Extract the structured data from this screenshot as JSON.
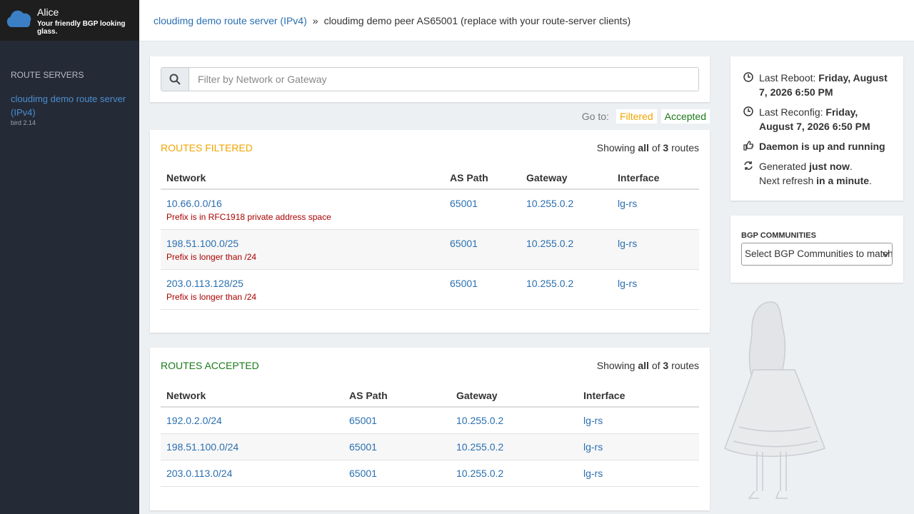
{
  "brand": {
    "name": "Alice",
    "tagline": "Your friendly BGP looking glass."
  },
  "sidebar": {
    "section": "ROUTE SERVERS",
    "servers": [
      {
        "name": "cloudimg demo route server (IPv4)",
        "version": "bird 2.14"
      }
    ]
  },
  "breadcrumb": {
    "parent": "cloudimg demo route server (IPv4)",
    "separator": "»",
    "current": "cloudimg demo peer AS65001 (replace with your route-server clients)"
  },
  "search": {
    "placeholder": "Filter by Network or Gateway"
  },
  "goto": {
    "label": "Go to:",
    "links": [
      "Filtered",
      "Accepted"
    ]
  },
  "filtered": {
    "title": "ROUTES FILTERED",
    "summary": {
      "prefix": "Showing",
      "scope": "all",
      "of": "of",
      "count": 3,
      "suffix": "routes"
    },
    "columns": [
      "Network",
      "AS Path",
      "Gateway",
      "Interface"
    ],
    "rows": [
      {
        "network": "10.66.0.0/16",
        "reason": "Prefix is in RFC1918 private address space",
        "as_path": "65001",
        "gateway": "10.255.0.2",
        "interface": "lg-rs"
      },
      {
        "network": "198.51.100.0/25",
        "reason": "Prefix is longer than /24",
        "as_path": "65001",
        "gateway": "10.255.0.2",
        "interface": "lg-rs"
      },
      {
        "network": "203.0.113.128/25",
        "reason": "Prefix is longer than /24",
        "as_path": "65001",
        "gateway": "10.255.0.2",
        "interface": "lg-rs"
      }
    ]
  },
  "accepted": {
    "title": "ROUTES ACCEPTED",
    "summary": {
      "prefix": "Showing",
      "scope": "all",
      "of": "of",
      "count": 3,
      "suffix": "routes"
    },
    "columns": [
      "Network",
      "AS Path",
      "Gateway",
      "Interface"
    ],
    "rows": [
      {
        "network": "192.0.2.0/24",
        "as_path": "65001",
        "gateway": "10.255.0.2",
        "interface": "lg-rs"
      },
      {
        "network": "198.51.100.0/24",
        "as_path": "65001",
        "gateway": "10.255.0.2",
        "interface": "lg-rs"
      },
      {
        "network": "203.0.113.0/24",
        "as_path": "65001",
        "gateway": "10.255.0.2",
        "interface": "lg-rs"
      }
    ]
  },
  "status": {
    "reboot": {
      "label": "Last Reboot:",
      "value": "Friday, August 7, 2026 6:50 PM"
    },
    "reconfig": {
      "label": "Last Reconfig:",
      "value": "Friday, August 7, 2026 6:50 PM"
    },
    "daemon": "Daemon is up and running",
    "generated": {
      "prefix": "Generated",
      "value": "just now",
      "suffix": "."
    },
    "refresh": {
      "prefix": "Next refresh",
      "value": "in a minute",
      "suffix": "."
    }
  },
  "communities": {
    "title": "BGP COMMUNITIES",
    "placeholder": "Select BGP Communities to match"
  }
}
